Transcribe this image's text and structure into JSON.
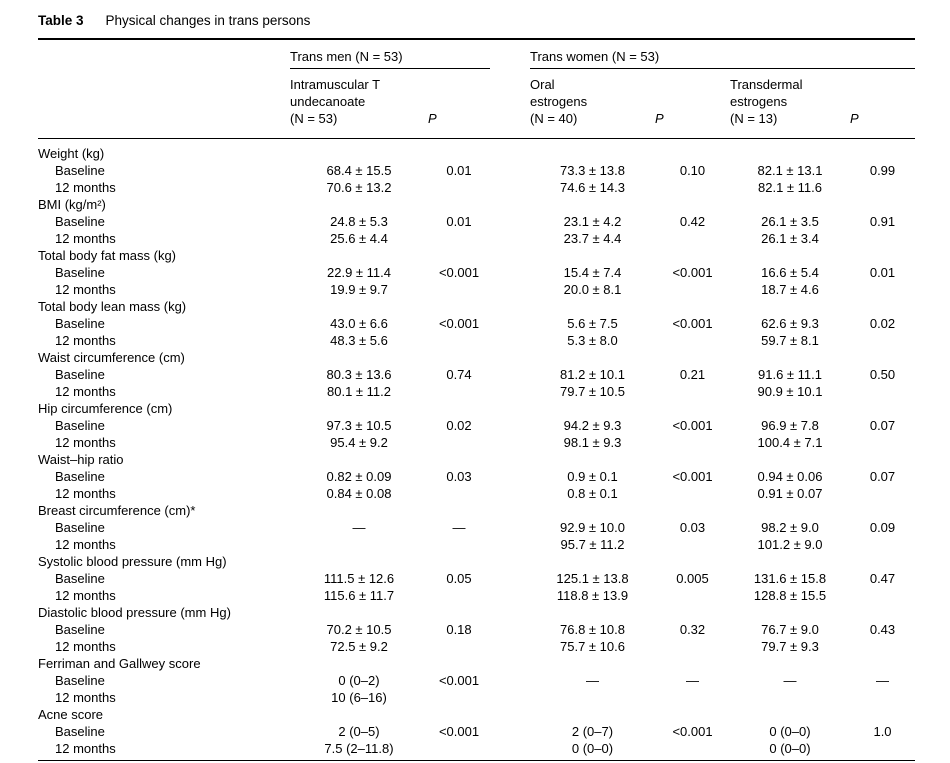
{
  "caption": {
    "label": "Table 3",
    "title": "Physical changes in trans persons"
  },
  "table": {
    "group_headers": [
      "Trans men (N = 53)",
      "Trans women (N = 53)"
    ],
    "columns": [
      "Intramuscular T\nundecanoate\n(N = 53)",
      "P",
      "Oral\nestrogens\n(N = 40)",
      "P",
      "Transdermal\nestrogens\n(N = 13)",
      "P"
    ],
    "groups": [
      {
        "name": "Weight (kg)",
        "rows": [
          {
            "label": "Baseline",
            "values": [
              "68.4 ± 15.5",
              "0.01",
              "73.3 ± 13.8",
              "0.10",
              "82.1 ± 13.1",
              "0.99"
            ]
          },
          {
            "label": "12 months",
            "values": [
              "70.6 ± 13.2",
              "",
              "74.6 ± 14.3",
              "",
              "82.1 ± 11.6",
              ""
            ]
          }
        ]
      },
      {
        "name": "BMI (kg/m²)",
        "rows": [
          {
            "label": "Baseline",
            "values": [
              "24.8 ± 5.3",
              "0.01",
              "23.1 ± 4.2",
              "0.42",
              "26.1 ± 3.5",
              "0.91"
            ]
          },
          {
            "label": "12 months",
            "values": [
              "25.6 ± 4.4",
              "",
              "23.7 ± 4.4",
              "",
              "26.1 ± 3.4",
              ""
            ]
          }
        ]
      },
      {
        "name": "Total body fat mass (kg)",
        "rows": [
          {
            "label": "Baseline",
            "values": [
              "22.9 ± 11.4",
              "<0.001",
              "15.4 ± 7.4",
              "<0.001",
              "16.6 ± 5.4",
              "0.01"
            ]
          },
          {
            "label": "12 months",
            "values": [
              "19.9 ± 9.7",
              "",
              "20.0 ± 8.1",
              "",
              "18.7 ± 4.6",
              ""
            ]
          }
        ]
      },
      {
        "name": "Total body lean mass (kg)",
        "rows": [
          {
            "label": "Baseline",
            "values": [
              "43.0 ± 6.6",
              "<0.001",
              "5.6 ± 7.5",
              "<0.001",
              "62.6 ± 9.3",
              "0.02"
            ]
          },
          {
            "label": "12 months",
            "values": [
              "48.3 ± 5.6",
              "",
              "5.3 ± 8.0",
              "",
              "59.7 ± 8.1",
              ""
            ]
          }
        ]
      },
      {
        "name": "Waist circumference (cm)",
        "rows": [
          {
            "label": "Baseline",
            "values": [
              "80.3 ± 13.6",
              "0.74",
              "81.2 ± 10.1",
              "0.21",
              "91.6 ± 11.1",
              "0.50"
            ]
          },
          {
            "label": "12 months",
            "values": [
              "80.1 ± 11.2",
              "",
              "79.7 ± 10.5",
              "",
              "90.9 ± 10.1",
              ""
            ]
          }
        ]
      },
      {
        "name": "Hip circumference (cm)",
        "rows": [
          {
            "label": "Baseline",
            "values": [
              "97.3 ± 10.5",
              "0.02",
              "94.2 ± 9.3",
              "<0.001",
              "96.9 ± 7.8",
              "0.07"
            ]
          },
          {
            "label": "12 months",
            "values": [
              "95.4 ± 9.2",
              "",
              "98.1 ± 9.3",
              "",
              "100.4 ± 7.1",
              ""
            ]
          }
        ]
      },
      {
        "name": "Waist–hip ratio",
        "rows": [
          {
            "label": "Baseline",
            "values": [
              "0.82 ± 0.09",
              "0.03",
              "0.9 ± 0.1",
              "<0.001",
              "0.94 ± 0.06",
              "0.07"
            ]
          },
          {
            "label": "12 months",
            "values": [
              "0.84 ± 0.08",
              "",
              "0.8 ± 0.1",
              "",
              "0.91 ± 0.07",
              ""
            ]
          }
        ]
      },
      {
        "name": "Breast circumference (cm)*",
        "rows": [
          {
            "label": "Baseline",
            "values": [
              "—",
              "—",
              "92.9 ± 10.0",
              "0.03",
              "98.2 ± 9.0",
              "0.09"
            ]
          },
          {
            "label": "12 months",
            "values": [
              "",
              "",
              "95.7 ± 11.2",
              "",
              "101.2 ± 9.0",
              ""
            ]
          }
        ]
      },
      {
        "name": "Systolic blood pressure (mm Hg)",
        "rows": [
          {
            "label": "Baseline",
            "values": [
              "111.5 ± 12.6",
              "0.05",
              "125.1 ± 13.8",
              "0.005",
              "131.6 ± 15.8",
              "0.47"
            ]
          },
          {
            "label": "12 months",
            "values": [
              "115.6 ± 11.7",
              "",
              "118.8 ± 13.9",
              "",
              "128.8 ± 15.5",
              ""
            ]
          }
        ]
      },
      {
        "name": "Diastolic blood pressure (mm Hg)",
        "rows": [
          {
            "label": "Baseline",
            "values": [
              "70.2 ± 10.5",
              "0.18",
              "76.8 ± 10.8",
              "0.32",
              "76.7 ± 9.0",
              "0.43"
            ]
          },
          {
            "label": "12 months",
            "values": [
              "72.5 ± 9.2",
              "",
              "75.7 ± 10.6",
              "",
              "79.7 ± 9.3",
              ""
            ]
          }
        ]
      },
      {
        "name": "Ferriman and Gallwey score",
        "rows": [
          {
            "label": "Baseline",
            "values": [
              "0 (0–2)",
              "<0.001",
              "—",
              "—",
              "—",
              "—"
            ]
          },
          {
            "label": "12 months",
            "values": [
              "10 (6–16)",
              "",
              "",
              "",
              "",
              ""
            ]
          }
        ]
      },
      {
        "name": "Acne score",
        "rows": [
          {
            "label": "Baseline",
            "values": [
              "2 (0–5)",
              "<0.001",
              "2 (0–7)",
              "<0.001",
              "0 (0–0)",
              "1.0"
            ]
          },
          {
            "label": "12 months",
            "values": [
              "7.5 (2–11.8)",
              "",
              "0 (0–0)",
              "",
              "0 (0–0)",
              ""
            ]
          }
        ]
      }
    ]
  }
}
